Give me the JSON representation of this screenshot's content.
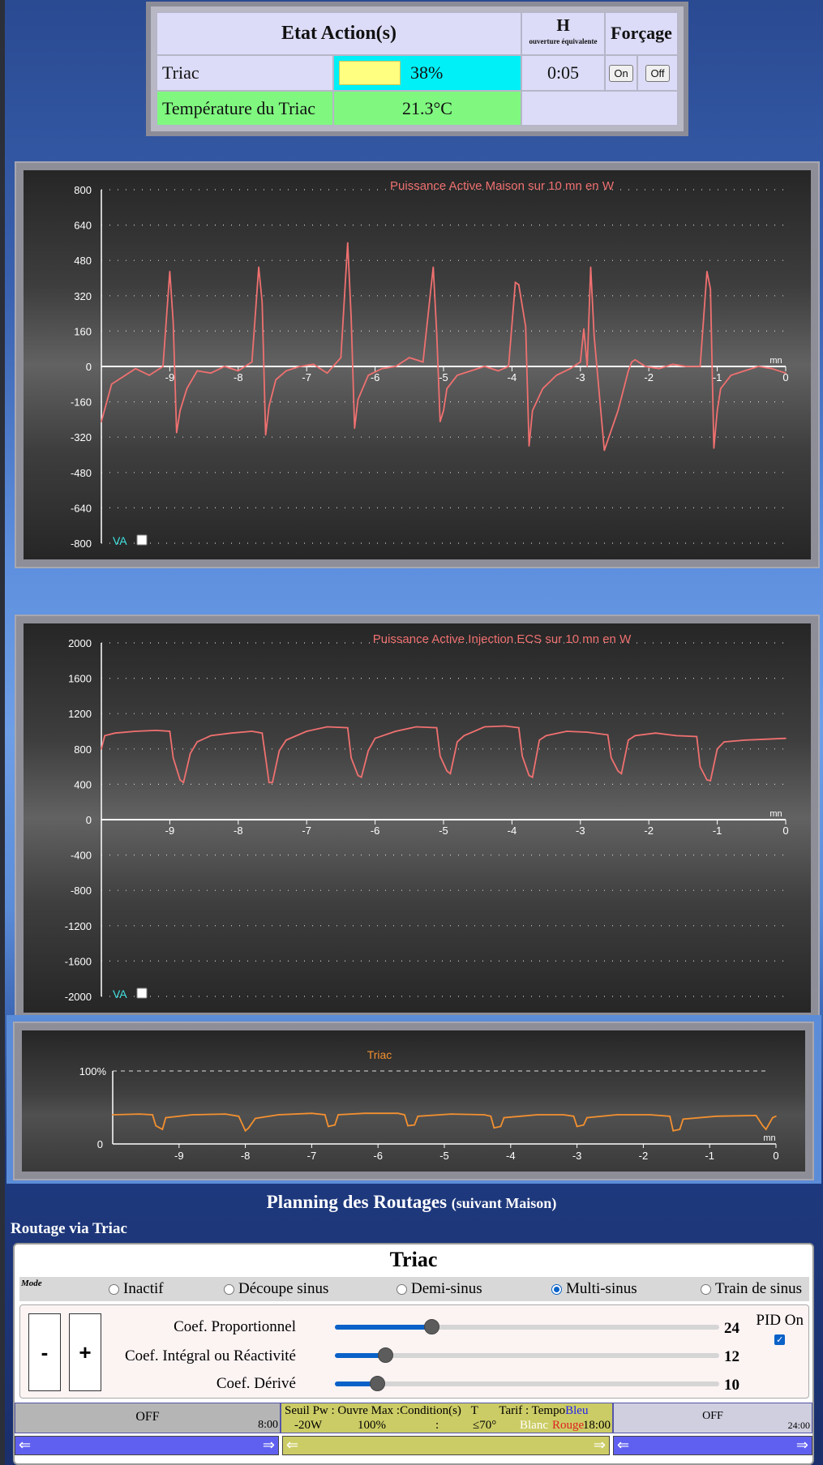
{
  "status_table": {
    "etat_title": "Etat Action(s)",
    "h_title": "H",
    "h_subtitle": "ouverture équivalente",
    "forcage_title": "Forçage",
    "triac_label": "Triac",
    "triac_percent": "38%",
    "triac_fraction": 0.38,
    "triac_time": "0:05",
    "on_label": "On",
    "off_label": "Off",
    "temp_label": "Température du Triac",
    "temp_value": "21.3°C"
  },
  "colors": {
    "triac_bar": "#00f0f8",
    "triac_fill": "#ffff80",
    "temp_bg": "#80f880",
    "series_red": "#f07070",
    "series_orange": "#f39030",
    "va_label": "#40e0e0",
    "accent_blue": "#0a62c8"
  },
  "chart_data": [
    {
      "type": "line",
      "title": "Puissance Active Maison sur 10 mn en W",
      "xlabel": "mn",
      "ylim": [
        -800,
        800
      ],
      "y_ticks": [
        "800",
        "640",
        "480",
        "320",
        "160",
        "0",
        "-160",
        "-320",
        "-480",
        "-640",
        "-800"
      ],
      "x_ticks": [
        "-9",
        "-8",
        "-7",
        "-6",
        "-5",
        "-4",
        "-3",
        "-2",
        "-1",
        "0"
      ],
      "checkbox_label": "VA",
      "series": [
        {
          "x": [
            -10,
            -9.85,
            -9.7,
            -9.5,
            -9.3,
            -9.1,
            -9.0,
            -8.95,
            -8.9,
            -8.85,
            -8.75,
            -8.6,
            -8.4,
            -8.2,
            -8.0,
            -7.8,
            -7.7,
            -7.65,
            -7.6,
            -7.55,
            -7.45,
            -7.3,
            -7.1,
            -6.9,
            -6.7,
            -6.5,
            -6.4,
            -6.35,
            -6.3,
            -6.25,
            -6.1,
            -5.9,
            -5.7,
            -5.5,
            -5.3,
            -5.15,
            -5.1,
            -5.05,
            -5.0,
            -4.95,
            -4.8,
            -4.6,
            -4.4,
            -4.2,
            -4.05,
            -3.95,
            -3.9,
            -3.8,
            -3.75,
            -3.7,
            -3.55,
            -3.35,
            -3.15,
            -3.0,
            -2.95,
            -2.9,
            -2.85,
            -2.8,
            -2.65,
            -2.45,
            -2.35,
            -2.3,
            -2.25,
            -2.2,
            -2.05,
            -1.85,
            -1.65,
            -1.45,
            -1.25,
            -1.15,
            -1.1,
            -1.05,
            -1.0,
            -0.95,
            -0.8,
            -0.6,
            -0.4,
            -0.2,
            0
          ],
          "values": [
            -250,
            -80,
            -50,
            -10,
            -40,
            0,
            430,
            200,
            -300,
            -200,
            -100,
            -20,
            -30,
            0,
            -20,
            20,
            450,
            290,
            -310,
            -180,
            -60,
            -20,
            0,
            10,
            -30,
            40,
            560,
            220,
            -280,
            -150,
            -40,
            -10,
            0,
            40,
            20,
            450,
            150,
            -250,
            -200,
            -100,
            -40,
            -20,
            0,
            -20,
            0,
            380,
            370,
            180,
            -360,
            -200,
            -100,
            -40,
            -10,
            20,
            170,
            0,
            450,
            140,
            -380,
            -200,
            -80,
            -20,
            20,
            30,
            0,
            -10,
            10,
            0,
            0,
            430,
            350,
            -370,
            -200,
            -100,
            -40,
            -20,
            0,
            -10,
            -30
          ]
        }
      ]
    },
    {
      "type": "line",
      "title": "Puissance Active Injection ECS sur 10 mn en W",
      "xlabel": "mn",
      "ylim": [
        -2000,
        2000
      ],
      "y_ticks": [
        "2000",
        "1600",
        "1200",
        "800",
        "400",
        "0",
        "-400",
        "-800",
        "-1200",
        "-1600",
        "-2000"
      ],
      "x_ticks": [
        "-9",
        "-8",
        "-7",
        "-6",
        "-5",
        "-4",
        "-3",
        "-2",
        "-1",
        "0"
      ],
      "checkbox_label": "VA",
      "series": [
        {
          "x": [
            -10,
            -9.95,
            -9.8,
            -9.5,
            -9.2,
            -9.0,
            -8.95,
            -8.85,
            -8.8,
            -8.7,
            -8.6,
            -8.4,
            -8.1,
            -7.8,
            -7.65,
            -7.6,
            -7.55,
            -7.5,
            -7.4,
            -7.3,
            -7.0,
            -6.7,
            -6.4,
            -6.35,
            -6.25,
            -6.2,
            -6.1,
            -6.0,
            -5.7,
            -5.4,
            -5.1,
            -5.05,
            -4.95,
            -4.9,
            -4.8,
            -4.7,
            -4.4,
            -4.1,
            -3.9,
            -3.85,
            -3.75,
            -3.7,
            -3.6,
            -3.5,
            -3.2,
            -2.9,
            -2.6,
            -2.55,
            -2.45,
            -2.4,
            -2.3,
            -2.2,
            -1.9,
            -1.6,
            -1.3,
            -1.25,
            -1.15,
            -1.1,
            -1.0,
            -0.9,
            -0.6,
            -0.3,
            0
          ],
          "values": [
            800,
            950,
            980,
            1000,
            1010,
            1000,
            700,
            450,
            420,
            750,
            880,
            950,
            980,
            1000,
            980,
            700,
            420,
            420,
            780,
            900,
            1000,
            1050,
            1040,
            700,
            500,
            480,
            780,
            920,
            1000,
            1050,
            1040,
            720,
            550,
            520,
            880,
            950,
            1050,
            1060,
            1040,
            720,
            500,
            480,
            900,
            950,
            1000,
            990,
            960,
            700,
            550,
            520,
            900,
            950,
            980,
            950,
            940,
            600,
            450,
            440,
            800,
            880,
            900,
            910,
            920
          ]
        }
      ]
    },
    {
      "type": "line",
      "title": "Triac",
      "xlabel": "mn",
      "ylim": [
        0,
        100
      ],
      "y_ticks": [
        "100%",
        "0"
      ],
      "x_ticks": [
        "-9",
        "-8",
        "-7",
        "-6",
        "-5",
        "-4",
        "-3",
        "-2",
        "-1",
        "0"
      ],
      "series": [
        {
          "x": [
            -10,
            -9.6,
            -9.4,
            -9.35,
            -9.25,
            -9.2,
            -8.8,
            -8.3,
            -8.1,
            -8.0,
            -7.95,
            -7.85,
            -7.5,
            -7.0,
            -6.8,
            -6.75,
            -6.65,
            -6.6,
            -6.2,
            -5.7,
            -5.6,
            -5.55,
            -5.45,
            -5.4,
            -4.9,
            -4.4,
            -4.3,
            -4.25,
            -4.15,
            -4.1,
            -3.6,
            -3.2,
            -3.05,
            -3.0,
            -2.9,
            -2.85,
            -2.4,
            -1.9,
            -1.6,
            -1.55,
            -1.45,
            -1.4,
            -0.9,
            -0.3,
            -0.2,
            -0.15,
            -0.05,
            0
          ],
          "values": [
            40,
            41,
            40,
            25,
            20,
            36,
            40,
            41,
            38,
            18,
            22,
            35,
            40,
            42,
            40,
            24,
            26,
            40,
            42,
            42,
            40,
            25,
            26,
            38,
            41,
            40,
            38,
            22,
            24,
            36,
            40,
            40,
            38,
            24,
            26,
            36,
            40,
            40,
            38,
            18,
            20,
            34,
            38,
            39,
            25,
            20,
            36,
            38
          ]
        }
      ]
    }
  ],
  "planning": {
    "title": "Planning des Routages",
    "title_small": "(suivant Maison)",
    "routage_label": "Routage via Triac",
    "panel_title": "Triac",
    "mode_label": "Mode",
    "modes": [
      {
        "label": "Inactif",
        "checked": false
      },
      {
        "label": "Découpe sinus",
        "checked": false
      },
      {
        "label": "Demi-sinus",
        "checked": false
      },
      {
        "label": "Multi-sinus",
        "checked": true
      },
      {
        "label": "Train de sinus",
        "checked": false
      }
    ],
    "minus_label": "-",
    "plus_label": "+",
    "coefs": [
      {
        "label": "Coef. Proportionnel",
        "value": "24",
        "level": 0.25
      },
      {
        "label": "Coef. Intégral ou Réactivité",
        "value": "12",
        "level": 0.13
      },
      {
        "label": "Coef. Dérivé",
        "value": "10",
        "level": 0.11
      }
    ],
    "pid_label": "PID On",
    "pid_checked": true,
    "timeline": {
      "seg1_label": "OFF",
      "seg1_end": "8:00",
      "seg2_line1_a": "Seuil Pw : Ouvre Max :Condition(s)",
      "seg2_line1_b": "T",
      "seg2_line1_c": "Tarif : Tempo",
      "seg2_tempo_bleu": "Bleu",
      "seg2_line2_a": "-20W",
      "seg2_line2_b": "100%",
      "seg2_line2_c": ":",
      "seg2_line2_d": "≤70°",
      "seg2_tempo_blanc": "Blanc",
      "seg2_tempo_rouge": "Rouge",
      "seg2_end": "18:00",
      "seg3_label": "OFF",
      "seg3_end": "24:00",
      "arrow_left": "⇐",
      "arrow_right": "⇒"
    }
  }
}
